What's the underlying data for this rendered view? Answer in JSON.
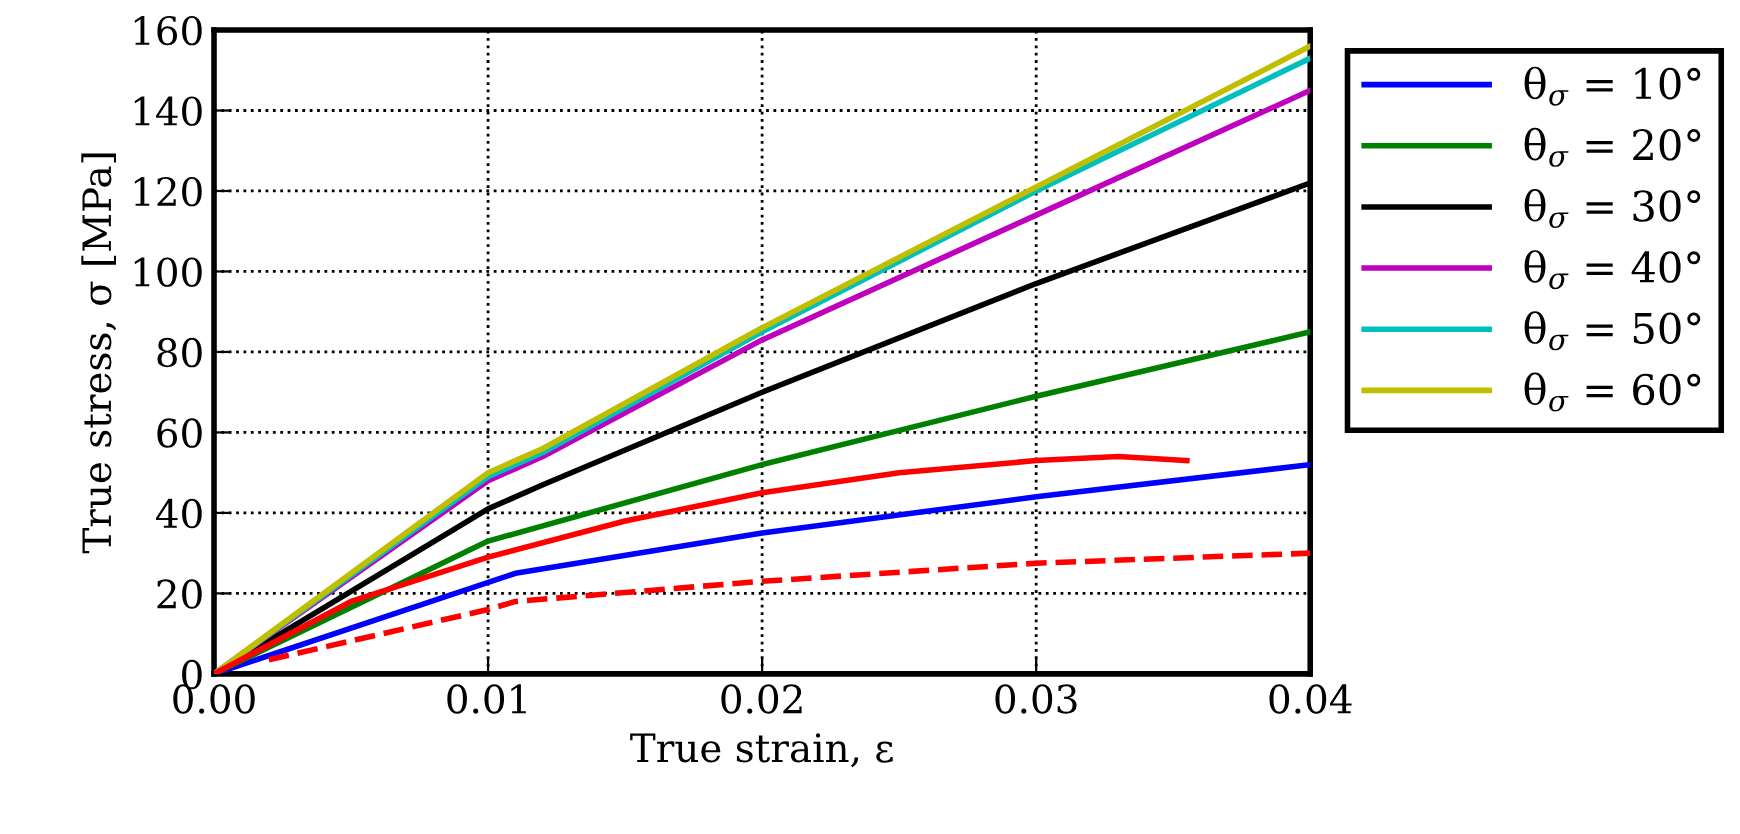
{
  "chart_data": {
    "type": "line",
    "xlabel": "True strain, ε",
    "ylabel": "True stress, σ [MPa]",
    "xlim": [
      0,
      0.04
    ],
    "ylim": [
      0,
      160
    ],
    "xticks": [
      {
        "value": 0,
        "label": "0.00"
      },
      {
        "value": 0.01,
        "label": "0.01"
      },
      {
        "value": 0.02,
        "label": "0.02"
      },
      {
        "value": 0.03,
        "label": "0.03"
      },
      {
        "value": 0.04,
        "label": "0.04"
      }
    ],
    "yticks": [
      0,
      20,
      40,
      60,
      80,
      100,
      120,
      140,
      160
    ],
    "grid": true,
    "legend": "right",
    "line_style": "solid",
    "series": [
      {
        "name": "θ$_{σ}$ = 10°",
        "color": "#0000ff",
        "x": [
          0,
          0.011,
          0.02,
          0.03,
          0.04
        ],
        "values": [
          0,
          25,
          35,
          44,
          52
        ]
      },
      {
        "name": "θ$_{σ}$ = 20°",
        "color": "#008000",
        "x": [
          0,
          0.01,
          0.02,
          0.03,
          0.04
        ],
        "values": [
          0,
          33,
          52,
          69,
          85
        ]
      },
      {
        "name": "θ$_{σ}$ = 30°",
        "color": "#000000",
        "x": [
          0,
          0.01,
          0.012,
          0.02,
          0.03,
          0.04
        ],
        "values": [
          0,
          41,
          47,
          70,
          97,
          122
        ]
      },
      {
        "name": "θ$_{σ}$ = 40°",
        "color": "#bf00bf",
        "x": [
          0,
          0.01,
          0.012,
          0.02,
          0.03,
          0.04
        ],
        "values": [
          0,
          48,
          54,
          83,
          114,
          145
        ]
      },
      {
        "name": "θ$_{σ}$ = 50°",
        "color": "#00bfbf",
        "x": [
          0,
          0.01,
          0.012,
          0.02,
          0.03,
          0.04
        ],
        "values": [
          0,
          49,
          55,
          85,
          120,
          153
        ]
      },
      {
        "name": "θ$_{σ}$ = 60°",
        "color": "#bfbf00",
        "x": [
          0,
          0.01,
          0.012,
          0.02,
          0.03,
          0.04
        ],
        "values": [
          0,
          50,
          56,
          86,
          121,
          156
        ]
      },
      {
        "color": "#ff0000",
        "x": [
          0,
          0.005,
          0.01,
          0.015,
          0.02,
          0.025,
          0.03,
          0.033,
          0.0355
        ],
        "values": [
          0,
          18,
          29,
          38,
          45,
          50,
          53,
          54,
          53
        ]
      },
      {
        "color": "#ff0000",
        "line_style": "dashed",
        "x": [
          0.002,
          0.01,
          0.011,
          0.02,
          0.03,
          0.04
        ],
        "values": [
          3.5,
          16,
          18,
          23,
          27.5,
          30
        ]
      }
    ]
  }
}
